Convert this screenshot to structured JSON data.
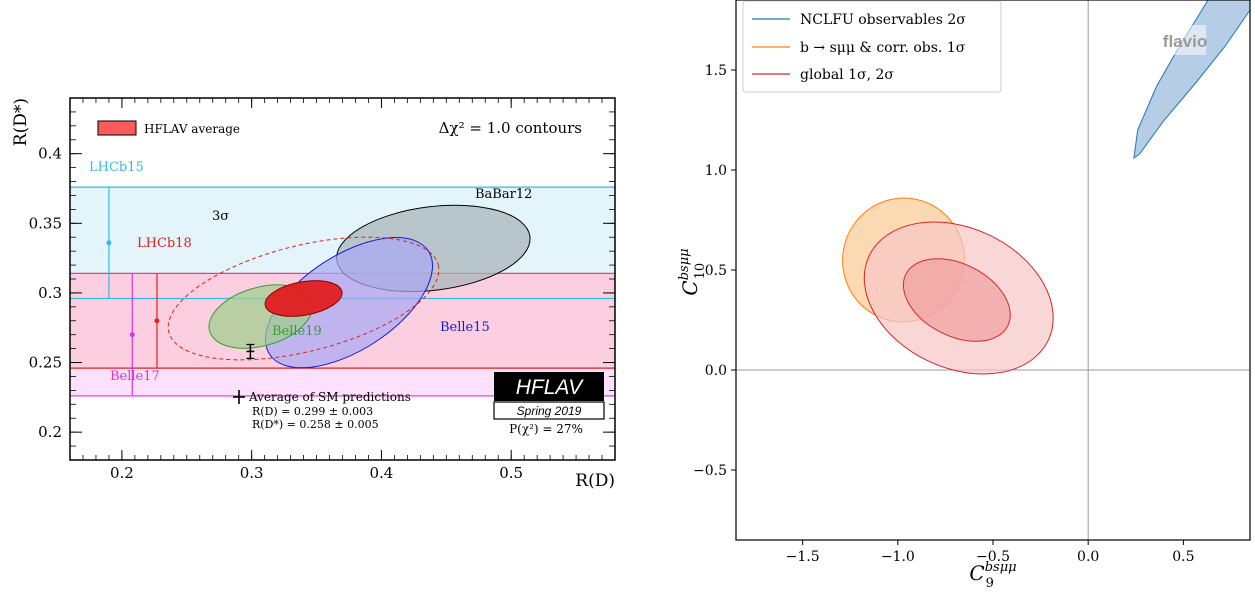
{
  "chart_data": [
    {
      "type": "scatter",
      "xlabel": "R(D)",
      "ylabel": "R(D*)",
      "xlim": [
        0.16,
        0.58
      ],
      "ylim": [
        0.18,
        0.44
      ],
      "xticks": [
        "0.2",
        "0.3",
        "0.4",
        "0.5"
      ],
      "yticks": [
        "0.2",
        "0.25",
        "0.3",
        "0.35",
        "0.4"
      ],
      "xtick_values": [
        0.2,
        0.3,
        0.4,
        0.5
      ],
      "ytick_values": [
        0.2,
        0.25,
        0.3,
        0.35,
        0.4
      ],
      "legend": {
        "label": "HFLAV average",
        "color": "#ff5a5a",
        "placement": "top-left"
      },
      "annotation_top_right": "Δχ² = 1.0 contours",
      "three_sigma_label": "3σ",
      "horizontal_bands": [
        {
          "name": "LHCb15",
          "center": 0.336,
          "low": 0.296,
          "high": 0.376,
          "x": 0.19,
          "color": "#33bbe0",
          "fill": "#e3f5fb"
        },
        {
          "name": "LHCb18",
          "center": 0.28,
          "low": 0.246,
          "high": 0.314,
          "x": 0.227,
          "color": "#e02020",
          "fill": "#fbcfe0"
        },
        {
          "name": "Belle17",
          "center": 0.27,
          "low": 0.226,
          "high": 0.314,
          "x": 0.208,
          "color": "#dd33dd",
          "fill": "#fde0fb"
        }
      ],
      "ellipses": [
        {
          "name": "BaBar12",
          "cx": 0.44,
          "cy": 0.332,
          "rx": 0.075,
          "ry": 0.03,
          "angle_deg": -7,
          "fill": "#a8b4b8",
          "stroke": "#000000"
        },
        {
          "name": "Belle15",
          "cx": 0.375,
          "cy": 0.293,
          "rx": 0.073,
          "ry": 0.034,
          "angle_deg": -33,
          "fill": "#a9a9f2",
          "stroke": "#1a1ad6"
        },
        {
          "name": "Belle19",
          "cx": 0.307,
          "cy": 0.283,
          "rx": 0.041,
          "ry": 0.021,
          "angle_deg": -16,
          "fill": "#9fcf8b",
          "stroke": "#3a9a3a"
        },
        {
          "name": "HFLAV average",
          "cx": 0.34,
          "cy": 0.296,
          "rx": 0.03,
          "ry": 0.012,
          "angle_deg": -10,
          "fill": "#e01f1f",
          "stroke": "#8a0000"
        }
      ],
      "three_sigma_ellipse": {
        "cx": 0.34,
        "cy": 0.296,
        "rx": 0.107,
        "ry": 0.038,
        "angle_deg": -14,
        "color": "#e02020"
      },
      "sm_prediction": {
        "x": 0.299,
        "y": 0.258,
        "x_err": 0.003,
        "y_err": 0.005
      },
      "sm_legend": {
        "title": "Average of SM predictions",
        "line1": "R(D) = 0.299 ± 0.003",
        "line2": "R(D*) = 0.258 ± 0.005"
      },
      "logo_text": "HFLAV",
      "logo_subtext": "Spring 2019",
      "p_chi2": "P(χ²) = 27%"
    },
    {
      "type": "area",
      "xlabel": "C9^bsμμ",
      "ylabel": "C10^bsμμ",
      "xlim": [
        -1.85,
        0.85
      ],
      "ylim": [
        -0.85,
        1.85
      ],
      "xticks": [
        "−1.5",
        "−1.0",
        "−0.5",
        "0.0",
        "0.5"
      ],
      "yticks": [
        "−0.5",
        "0.0",
        "0.5",
        "1.0",
        "1.5"
      ],
      "xtick_values": [
        -1.5,
        -1.0,
        -0.5,
        0.0,
        0.5
      ],
      "ytick_values": [
        -0.5,
        0.0,
        0.5,
        1.0,
        1.5
      ],
      "watermark": "flavio",
      "legend_placement": "top-left",
      "series": [
        {
          "name": "NCLFU observables 2σ",
          "stroke": "#1f77b4",
          "fill": "#a8c4e0",
          "points": [
            [
              0.24,
              1.06
            ],
            [
              0.27,
              1.08
            ],
            [
              0.4,
              1.25
            ],
            [
              0.56,
              1.43
            ],
            [
              0.72,
              1.62
            ],
            [
              0.85,
              1.8
            ],
            [
              0.85,
              1.85
            ],
            [
              0.63,
              1.85
            ],
            [
              0.48,
              1.62
            ],
            [
              0.36,
              1.42
            ],
            [
              0.26,
              1.2
            ]
          ]
        },
        {
          "name": "b → sμμ & corr. obs. 1σ",
          "stroke": "#ff7f0e",
          "fill": "#fad3a6",
          "ellipse": {
            "cx": -0.97,
            "cy": 0.55,
            "rx": 0.32,
            "ry": 0.31,
            "angle_deg": 12
          }
        },
        {
          "name": "global 1σ, 2σ",
          "stroke": "#d62728",
          "fill": "#f6c6c6",
          "fill_inner": "#f0a0a0",
          "ellipse_2sigma": {
            "cx": -0.68,
            "cy": 0.36,
            "rx": 0.52,
            "ry": 0.35,
            "angle_deg": 25
          },
          "ellipse_1sigma": {
            "cx": -0.69,
            "cy": 0.35,
            "rx": 0.3,
            "ry": 0.18,
            "angle_deg": 27
          }
        }
      ]
    }
  ]
}
